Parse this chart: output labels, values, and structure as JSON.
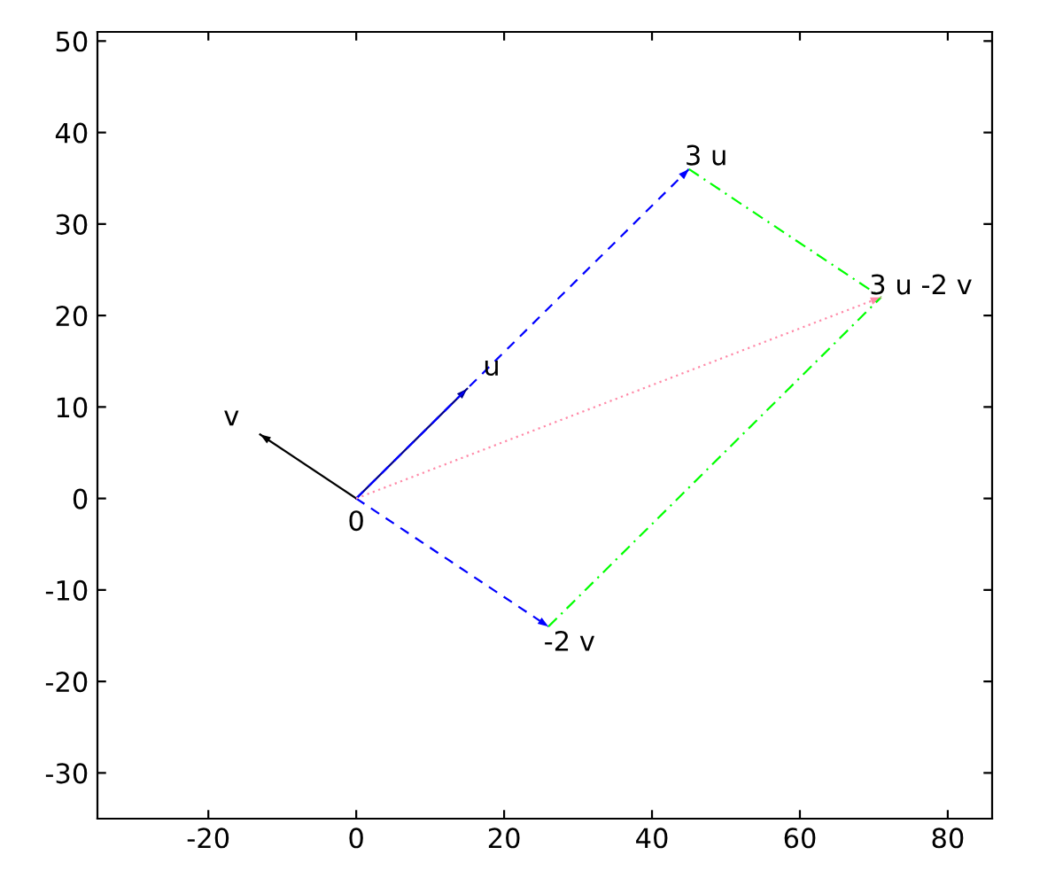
{
  "chart_data": {
    "type": "line",
    "xlim": [
      -35,
      86
    ],
    "ylim": [
      -35,
      51
    ],
    "xticks": [
      -20,
      0,
      20,
      40,
      60,
      80
    ],
    "yticks": [
      -30,
      -20,
      -10,
      0,
      10,
      20,
      30,
      40,
      50
    ],
    "grid": false,
    "legend": false,
    "marker": "none",
    "series": [
      {
        "x": [
          0,
          15
        ],
        "values": [
          0,
          12
        ],
        "color": "#00008b",
        "line_style": "solid"
      },
      {
        "x": [
          0,
          -13
        ],
        "values": [
          0,
          7
        ],
        "color": "#000000",
        "line_style": "solid"
      },
      {
        "x": [
          0,
          45
        ],
        "values": [
          0,
          36
        ],
        "color": "#0000ff",
        "line_style": "dashed"
      },
      {
        "x": [
          0,
          26
        ],
        "values": [
          0,
          -14
        ],
        "color": "#0000ff",
        "line_style": "dashed"
      },
      {
        "x": [
          45,
          71
        ],
        "values": [
          36,
          22
        ],
        "color": "#00ff00",
        "line_style": "dashdot"
      },
      {
        "x": [
          26,
          71
        ],
        "values": [
          -14,
          22
        ],
        "color": "#00ff00",
        "line_style": "dashdot"
      },
      {
        "x": [
          0,
          71
        ],
        "values": [
          0,
          22
        ],
        "color": "#ff8aa8",
        "line_style": "dotted"
      }
    ],
    "annotations": [
      {
        "text": "u",
        "x": 15,
        "y": 12
      },
      {
        "text": "v",
        "x": -13,
        "y": 7
      },
      {
        "text": "0",
        "x": 0,
        "y": 0
      },
      {
        "text": "3 u",
        "x": 44,
        "y": 35
      },
      {
        "text": "-2 v",
        "x": 25,
        "y": -14
      },
      {
        "text": "3 u -2 v",
        "x": 72,
        "y": 22
      }
    ]
  }
}
